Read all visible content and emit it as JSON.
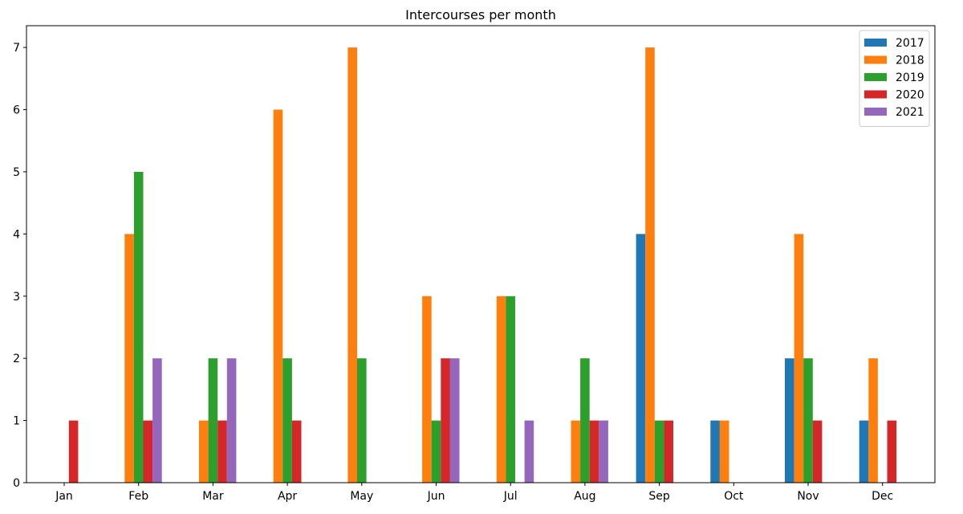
{
  "chart_data": {
    "type": "bar",
    "title": "Intercourses per month",
    "xlabel": "",
    "ylabel": "",
    "categories": [
      "Jan",
      "Feb",
      "Mar",
      "Apr",
      "May",
      "Jun",
      "Jul",
      "Aug",
      "Sep",
      "Oct",
      "Nov",
      "Dec"
    ],
    "ylim": [
      0,
      7.35
    ],
    "yticks": [
      0,
      1,
      2,
      3,
      4,
      5,
      6,
      7
    ],
    "grid": false,
    "legend_position": "top-right",
    "series": [
      {
        "name": "2017",
        "color": "#1f77b4",
        "values": [
          0,
          0,
          0,
          0,
          0,
          0,
          0,
          0,
          4,
          1,
          2,
          1
        ]
      },
      {
        "name": "2018",
        "color": "#ff7f0e",
        "values": [
          0,
          4,
          1,
          6,
          7,
          3,
          3,
          1,
          7,
          1,
          4,
          2
        ]
      },
      {
        "name": "2019",
        "color": "#2ca02c",
        "values": [
          0,
          5,
          2,
          2,
          2,
          1,
          3,
          2,
          1,
          0,
          2,
          0
        ]
      },
      {
        "name": "2020",
        "color": "#d62728",
        "values": [
          1,
          1,
          1,
          1,
          0,
          2,
          0,
          1,
          1,
          0,
          1,
          1
        ]
      },
      {
        "name": "2021",
        "color": "#9467bd",
        "values": [
          0,
          2,
          2,
          0,
          0,
          2,
          1,
          1,
          0,
          0,
          0,
          0
        ]
      }
    ]
  }
}
